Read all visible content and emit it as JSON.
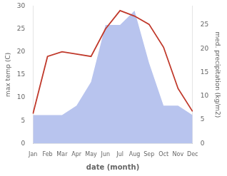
{
  "chart_data": {
    "type": "line",
    "xlabel": "date (month)",
    "ylabel": "max temp (C)",
    "y2label": "med. precipitation (kg/m2)",
    "categories": [
      "Jan",
      "Feb",
      "Mar",
      "Apr",
      "May",
      "Jun",
      "Jul",
      "Aug",
      "Sep",
      "Oct",
      "Nov",
      "Dec"
    ],
    "series": [
      {
        "type": "line",
        "color": "#c0392b",
        "values": [
          6.5,
          19.0,
          20.0,
          19.5,
          19.0,
          25.0,
          29.0,
          27.8,
          26.0,
          21.0,
          12.0,
          7.0
        ]
      },
      {
        "type": "area",
        "color": "#b8c4ee",
        "axis": "y2",
        "values": [
          6.0,
          6.0,
          6.0,
          8.0,
          13.0,
          25.0,
          25.0,
          28.0,
          17.0,
          8.0,
          8.0,
          6.0
        ]
      }
    ],
    "ylim": [
      0,
      30
    ],
    "yticks": [
      0,
      5,
      10,
      15,
      20,
      25,
      30
    ],
    "y2lim": [
      0,
      29
    ],
    "y2ticks": [
      0,
      5,
      10,
      15,
      20,
      25
    ],
    "background_color": "#ffffff",
    "grid": false,
    "legend": false
  }
}
